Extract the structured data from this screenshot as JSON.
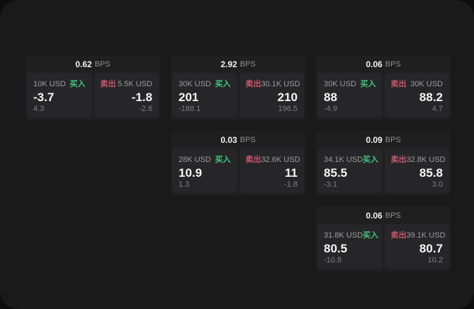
{
  "labels": {
    "bps_unit": "BPS",
    "buy": "买入",
    "sell": "卖出"
  },
  "colors": {
    "buy": "#43c87c",
    "sell": "#c9566a",
    "panel_background": "#1a1a1b",
    "card_background": "#1f1f20",
    "quote_panel_background": "#262628"
  },
  "cards": [
    {
      "bps": "0.62",
      "col": 0,
      "row": 0,
      "buy": {
        "amount": "10K USD",
        "value": "-3.7",
        "sub": "4.3"
      },
      "sell": {
        "amount": "5.5K USD",
        "value": "-1.8",
        "sub": "-2.6"
      }
    },
    {
      "bps": "2.92",
      "col": 1,
      "row": 0,
      "buy": {
        "amount": "30K USD",
        "value": "201",
        "sub": "-188.1"
      },
      "sell": {
        "amount": "30.1K USD",
        "value": "210",
        "sub": "196.5"
      }
    },
    {
      "bps": "0.06",
      "col": 2,
      "row": 0,
      "buy": {
        "amount": "30K USD",
        "value": "88",
        "sub": "-4.9"
      },
      "sell": {
        "amount": "30K USD",
        "value": "88.2",
        "sub": "4.7"
      }
    },
    {
      "bps": "0.03",
      "col": 1,
      "row": 1,
      "buy": {
        "amount": "28K USD",
        "value": "10.9",
        "sub": "1.3"
      },
      "sell": {
        "amount": "32.6K USD",
        "value": "11",
        "sub": "-1.8"
      }
    },
    {
      "bps": "0.09",
      "col": 2,
      "row": 1,
      "buy": {
        "amount": "34.1K USD",
        "value": "85.5",
        "sub": "-3.1"
      },
      "sell": {
        "amount": "32.8K USD",
        "value": "85.8",
        "sub": "3.0"
      }
    },
    {
      "bps": "0.06",
      "col": 2,
      "row": 2,
      "buy": {
        "amount": "31.8K USD",
        "value": "80.5",
        "sub": "-10.8"
      },
      "sell": {
        "amount": "39.1K USD",
        "value": "80.7",
        "sub": "10.2"
      }
    }
  ]
}
